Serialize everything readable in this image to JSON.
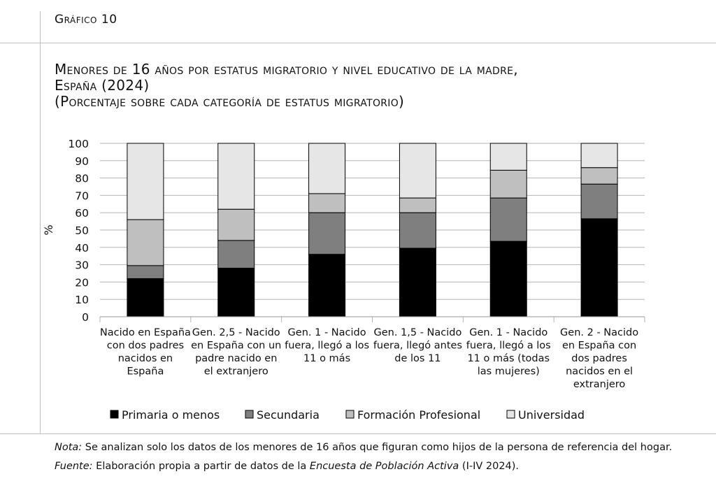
{
  "header": {
    "label": "Gráfico 10"
  },
  "title": {
    "line1": "Menores de 16 años por estatus migratorio y nivel educativo de la madre,",
    "line2": "España (2024)",
    "line3": "(Porcentaje sobre cada categoría de estatus migratorio)"
  },
  "chart_data": {
    "type": "bar",
    "stacked": true,
    "ylabel": "%",
    "ylim": [
      0,
      100
    ],
    "yticks": [
      0,
      10,
      20,
      30,
      40,
      50,
      60,
      70,
      80,
      90,
      100
    ],
    "grid": true,
    "legend_position": "bottom",
    "categories": [
      [
        "Nacido en España",
        "con dos padres",
        "nacidos en",
        "España"
      ],
      [
        "Gen. 2,5 - Nacido",
        "en España con un",
        "padre nacido en",
        "el extranjero"
      ],
      [
        "Gen. 1 - Nacido",
        "fuera, llegó a los",
        "11 o más"
      ],
      [
        "Gen. 1,5 - Nacido",
        "fuera, llegó antes",
        "de los 11"
      ],
      [
        "Gen. 1 - Nacido",
        "fuera, llegó a los",
        "11 o más (todas",
        "las mujeres)"
      ],
      [
        "Gen. 2 - Nacido",
        "en España con",
        "dos padres",
        "nacidos en el",
        "extranjero"
      ]
    ],
    "series": [
      {
        "name": "Primaria o menos",
        "color": "#000000",
        "values": [
          22,
          28,
          36,
          39.5,
          43.5,
          56.5
        ]
      },
      {
        "name": "Secundaria",
        "color": "#7f7f7f",
        "values": [
          7.5,
          16,
          24,
          20.5,
          25,
          20
        ]
      },
      {
        "name": "Formación Profesional",
        "color": "#bfbfbf",
        "values": [
          26.5,
          18,
          11,
          8.5,
          16,
          9.5
        ]
      },
      {
        "name": "Universidad",
        "color": "#e6e6e6",
        "values": [
          44,
          38,
          29,
          31.5,
          15.5,
          14
        ]
      }
    ]
  },
  "notes": {
    "nota_label": "Nota:",
    "nota_text": " Se analizan solo los datos de los menores de 16 años que figuran como hijos de la persona de referencia del hogar.",
    "fuente_label": "Fuente:",
    "fuente_text_before": " Elaboración propia a partir de datos de la ",
    "fuente_source": "Encuesta de Población Activa",
    "fuente_text_after": " (I-IV 2024)."
  }
}
